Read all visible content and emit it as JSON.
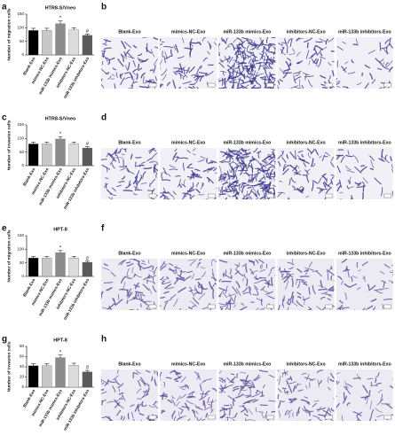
{
  "chart_data": [
    {
      "type": "bar",
      "letter": "a",
      "title": "HTR8-S/Vneo",
      "y_label": "Number of migration cells",
      "categories": [
        "Blank-Exo",
        "mimics-NC-Exo",
        "miR-133b mimics-Exo",
        "inhibitors-NC-Exo",
        "miR-133b inhibitors-Exo"
      ],
      "values": [
        90,
        90,
        115,
        92,
        72
      ],
      "errors": [
        8,
        8,
        10,
        8,
        5
      ],
      "colors": [
        "#000000",
        "#c8c8c8",
        "#8c8c8c",
        "#dcdcdc",
        "#5a5a5a"
      ],
      "ylim": [
        0,
        150
      ],
      "yticks": [
        0,
        50,
        100,
        150
      ],
      "annotations": [
        {
          "text": "*",
          "category": "miR-133b mimics-Exo"
        },
        {
          "text": "#",
          "category": "miR-133b inhibitors-Exo"
        }
      ]
    },
    {
      "type": "bar",
      "letter": "c",
      "title": "HTR8-S/Vneo",
      "y_label": "Number of invasion cells",
      "categories": [
        "Blank-Exo",
        "mimics-NC-Exo",
        "miR-133b mimics-Exo",
        "inhibitors-NC-Exo",
        "miR-133b inhibitors-Exo"
      ],
      "values": [
        80,
        80,
        98,
        80,
        65
      ],
      "errors": [
        7,
        7,
        9,
        7,
        5
      ],
      "colors": [
        "#000000",
        "#c8c8c8",
        "#8c8c8c",
        "#dcdcdc",
        "#5a5a5a"
      ],
      "ylim": [
        0,
        150
      ],
      "yticks": [
        0,
        50,
        100,
        150
      ],
      "annotations": [
        {
          "text": "*",
          "category": "miR-133b mimics-Exo"
        },
        {
          "text": "#",
          "category": "miR-133b inhibitors-Exo"
        }
      ]
    },
    {
      "type": "bar",
      "letter": "e",
      "title": "HPT-8",
      "y_label": "Number of migration cells",
      "categories": [
        "Blank-Exo",
        "mimics-NC-Exo",
        "miR-133b mimics-Exo",
        "inhibitors-NC-Exo",
        "miR-133b inhibitors-Exo"
      ],
      "values": [
        68,
        67,
        87,
        68,
        52
      ],
      "errors": [
        6,
        6,
        8,
        6,
        4
      ],
      "colors": [
        "#000000",
        "#c8c8c8",
        "#8c8c8c",
        "#dcdcdc",
        "#5a5a5a"
      ],
      "ylim": [
        0,
        150
      ],
      "yticks": [
        0,
        50,
        100,
        150
      ],
      "annotations": [
        {
          "text": "*",
          "category": "miR-133b mimics-Exo"
        },
        {
          "text": "#",
          "category": "miR-133b inhibitors-Exo"
        }
      ]
    },
    {
      "type": "bar",
      "letter": "g",
      "title": "HPT-8",
      "y_label": "Number of invasion cells",
      "categories": [
        "Blank-Exo",
        "mimics-NC-Exo",
        "miR-133b mimics-Exo",
        "inhibitors-NC-Exo",
        "miR-133b inhibitors-Exo"
      ],
      "values": [
        42,
        42,
        58,
        43,
        30
      ],
      "errors": [
        4,
        4,
        5,
        4,
        3
      ],
      "colors": [
        "#000000",
        "#c8c8c8",
        "#8c8c8c",
        "#dcdcdc",
        "#5a5a5a"
      ],
      "ylim": [
        0,
        80
      ],
      "yticks": [
        0,
        20,
        40,
        60,
        80
      ],
      "annotations": [
        {
          "text": "*",
          "category": "miR-133b mimics-Exo"
        },
        {
          "text": "#",
          "category": "miR-133b inhibitors-Exo"
        }
      ]
    }
  ],
  "image_panels": [
    {
      "letter": "b",
      "labels": [
        "Blank-Exo",
        "mimics-NC-Exo",
        "miR-133b mimics-Exo",
        "inhibitors-NC-Exo",
        "miR-133b inhibitors-Exo"
      ]
    },
    {
      "letter": "d",
      "labels": [
        "Blank-Exo",
        "mimics-NC-Exo",
        "miR-133b mimics-Exo",
        "inhibitors-NC-Exo",
        "miR-133b inhibitors-Exo"
      ]
    },
    {
      "letter": "f",
      "labels": [
        "Blank-Exo",
        "mimics-NC-Exo",
        "miR-133b mimics-Exo",
        "inhibitors-NC-Exo",
        "miR-133b inhibitors-Exo"
      ]
    },
    {
      "letter": "h",
      "labels": [
        "Blank-Exo",
        "mimics-NC-Exo",
        "miR-133b mimics-Exo",
        "inhibitors-NC-Exo",
        "miR-133b inhibitors-Exo"
      ]
    }
  ]
}
